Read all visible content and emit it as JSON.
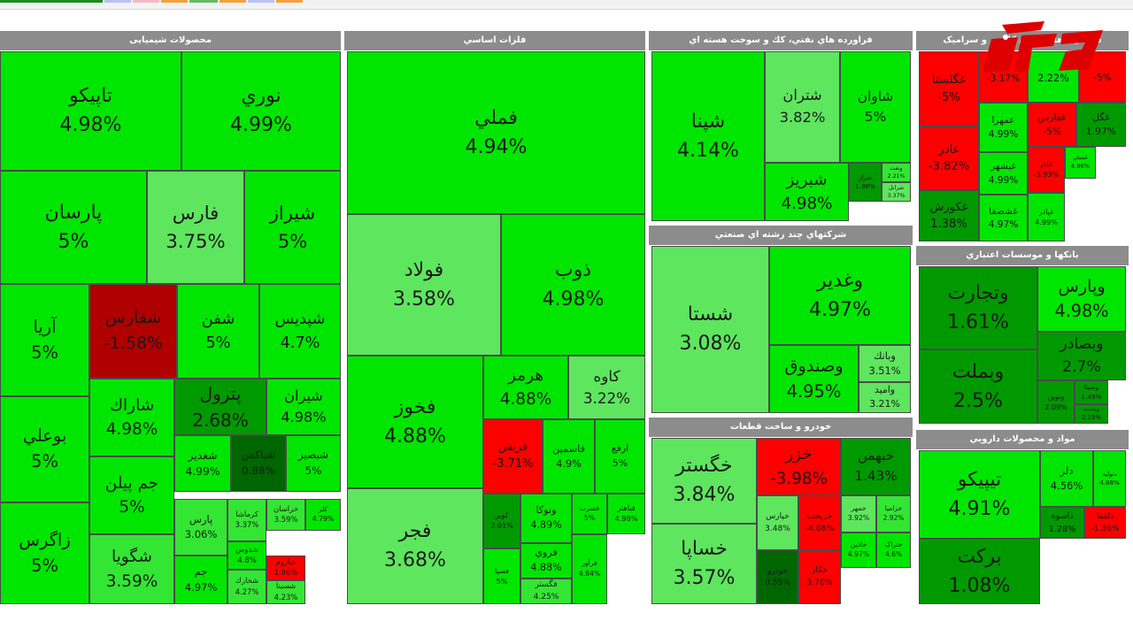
{
  "colors": {
    "strong_green": "#00e600",
    "mid_green": "#33e633",
    "light_green": "#5ee65e",
    "dark_green": "#009900",
    "darker_green": "#006600",
    "red": "#ff0000",
    "dark_red": "#b00000",
    "header": "#8c8c8c"
  },
  "chart_data": {
    "type": "treemap",
    "sectors": [
      {
        "id": "chem",
        "name": "محصولات شیمیایی",
        "tiles": [
          {
            "name": "تاپیکو",
            "value": "4.98%"
          },
          {
            "name": "نوري",
            "value": "4.99%"
          },
          {
            "name": "پارسان",
            "value": "5%"
          },
          {
            "name": "فارس",
            "value": "3.75%"
          },
          {
            "name": "شیراز",
            "value": "5%"
          },
          {
            "name": "آريا",
            "value": "5%"
          },
          {
            "name": "شفارس",
            "value": "-1.58%"
          },
          {
            "name": "شفن",
            "value": "5%"
          },
          {
            "name": "شپدیس",
            "value": "4.7%"
          },
          {
            "name": "بوعلي",
            "value": "5%"
          },
          {
            "name": "شاراك",
            "value": "4.98%"
          },
          {
            "name": "پترول",
            "value": "2.68%"
          },
          {
            "name": "شیران",
            "value": "4.98%"
          },
          {
            "name": "جم پیلن",
            "value": "5%"
          },
          {
            "name": "شغدیر",
            "value": "4.99%"
          },
          {
            "name": "شیاکس",
            "value": "0.88%"
          },
          {
            "name": "شبصیر",
            "value": "5%"
          },
          {
            "name": "زاگرس",
            "value": "5%"
          },
          {
            "name": "شگویا",
            "value": "3.59%"
          },
          {
            "name": "پارس",
            "value": "3.06%"
          },
          {
            "name": "کرماشا",
            "value": "3.37%"
          },
          {
            "name": "خراسان",
            "value": "3.59%"
          },
          {
            "name": "کلر",
            "value": "4.79%"
          },
          {
            "name": "جم",
            "value": "4.97%"
          },
          {
            "name": "شدوص",
            "value": "4.8%"
          },
          {
            "name": "شخارك",
            "value": "4.27%"
          },
          {
            "name": "شاروم",
            "value": "1.96%"
          },
          {
            "name": "شسینا",
            "value": "4.23%"
          }
        ]
      },
      {
        "id": "metals",
        "name": "فلزات اساسي",
        "tiles": [
          {
            "name": "فملي",
            "value": "4.94%"
          },
          {
            "name": "فولاد",
            "value": "3.58%"
          },
          {
            "name": "ذوب",
            "value": "4.98%"
          },
          {
            "name": "فخوز",
            "value": "4.88%"
          },
          {
            "name": "هرمز",
            "value": "4.88%"
          },
          {
            "name": "کاوه",
            "value": "3.22%"
          },
          {
            "name": "فريس",
            "value": "-3.71%"
          },
          {
            "name": "فاسمین",
            "value": "4.9%"
          },
          {
            "name": "ارفع",
            "value": "5%"
          },
          {
            "name": "فجر",
            "value": "3.68%"
          },
          {
            "name": "کویر",
            "value": "2.01%"
          },
          {
            "name": "ونوکا",
            "value": "4.89%"
          },
          {
            "name": "فسرب",
            "value": "5%"
          },
          {
            "name": "فباهنر",
            "value": "4.98%"
          },
          {
            "name": "فرآور",
            "value": "4.84%"
          },
          {
            "name": "فسپا",
            "value": "5%"
          },
          {
            "name": "فروي",
            "value": "4.88%"
          },
          {
            "name": "فگستر",
            "value": "4.25%"
          }
        ]
      },
      {
        "id": "oil",
        "name": "فراورده هاي نفتي، كك و سوخت هسته اي",
        "tiles": [
          {
            "name": "شپنا",
            "value": "4.14%"
          },
          {
            "name": "شتران",
            "value": "3.82%"
          },
          {
            "name": "شاوان",
            "value": "5%"
          },
          {
            "name": "شبریز",
            "value": "4.98%"
          },
          {
            "name": "شراز",
            "value": "1.98%"
          },
          {
            "name": "شرانل",
            "value": "3.37%"
          },
          {
            "name": "ونفت",
            "value": "2.21%"
          }
        ]
      },
      {
        "id": "multi",
        "name": "شرکتهاي چند رشته اي صنعتي",
        "tiles": [
          {
            "name": "شستا",
            "value": "3.08%"
          },
          {
            "name": "وغدير",
            "value": "4.97%"
          },
          {
            "name": "وصندوق",
            "value": "4.95%"
          },
          {
            "name": "وبانك",
            "value": "3.51%"
          },
          {
            "name": "واميد",
            "value": "3.21%"
          }
        ]
      },
      {
        "id": "auto",
        "name": "خودرو و ساخت قطعات",
        "tiles": [
          {
            "name": "خگستر",
            "value": "3.84%"
          },
          {
            "name": "خزر",
            "value": "-3.98%"
          },
          {
            "name": "خبهمن",
            "value": "1.43%"
          },
          {
            "name": "خساپا",
            "value": "3.57%"
          },
          {
            "name": "خپارس",
            "value": "3.48%"
          },
          {
            "name": "خریخت",
            "value": "-4.88%"
          },
          {
            "name": "خمهر",
            "value": "3.92%"
          },
          {
            "name": "خزامیا",
            "value": "2.92%"
          },
          {
            "name": "خودرو",
            "value": "0.55%"
          },
          {
            "name": "خکار",
            "value": "3.78%"
          },
          {
            "name": "خاذین",
            "value": "4.97%"
          },
          {
            "name": "ختراک",
            "value": "4.6%"
          }
        ]
      },
      {
        "id": "cement",
        "name": "سیمان، آهك و گچ / کاشي و سرامیک",
        "tiles": [
          {
            "name": "غگلستا",
            "value": "-5%"
          },
          {
            "name": "",
            "value": "-3.17%"
          },
          {
            "name": "",
            "value": "2.22%"
          },
          {
            "name": "",
            "value": "-5%"
          },
          {
            "name": "عمهرا",
            "value": "4.99%"
          },
          {
            "name": "غفارس",
            "value": "-5%"
          },
          {
            "name": "غگل",
            "value": "1.97%"
          },
          {
            "name": "غادر",
            "value": "-3.82%"
          },
          {
            "name": "غیشهر",
            "value": "4.99%"
          },
          {
            "name": "غاذر",
            "value": "-3.93%"
          },
          {
            "name": "غشان",
            "value": "4.96%"
          },
          {
            "name": "غکورش",
            "value": "1.38%"
          },
          {
            "name": "غشصفا",
            "value": "4.97%"
          },
          {
            "name": "غپاذر",
            "value": "4.99%"
          }
        ]
      },
      {
        "id": "banks",
        "name": "بانکها و موسسات اعتباري",
        "tiles": [
          {
            "name": "وتجارت",
            "value": "1.61%"
          },
          {
            "name": "وپارس",
            "value": "4.98%"
          },
          {
            "name": "وبصادر",
            "value": "2.7%"
          },
          {
            "name": "وبملت",
            "value": "2.5%"
          },
          {
            "name": "ونوين",
            "value": "2.09%"
          },
          {
            "name": "وسینا",
            "value": "1.49%"
          },
          {
            "name": "وپست",
            "value": "2.19%"
          }
        ]
      },
      {
        "id": "pharma",
        "name": "مواد و محصولات دارويي",
        "tiles": [
          {
            "name": "تیپیکو",
            "value": "4.91%"
          },
          {
            "name": "دلر",
            "value": "4.56%"
          },
          {
            "name": "دتولید",
            "value": "4.88%"
          },
          {
            "name": "برکت",
            "value": "1.08%"
          },
          {
            "name": "داسوه",
            "value": "1.28%"
          },
          {
            "name": "دلقما",
            "value": "-1.36%"
          }
        ]
      }
    ]
  }
}
